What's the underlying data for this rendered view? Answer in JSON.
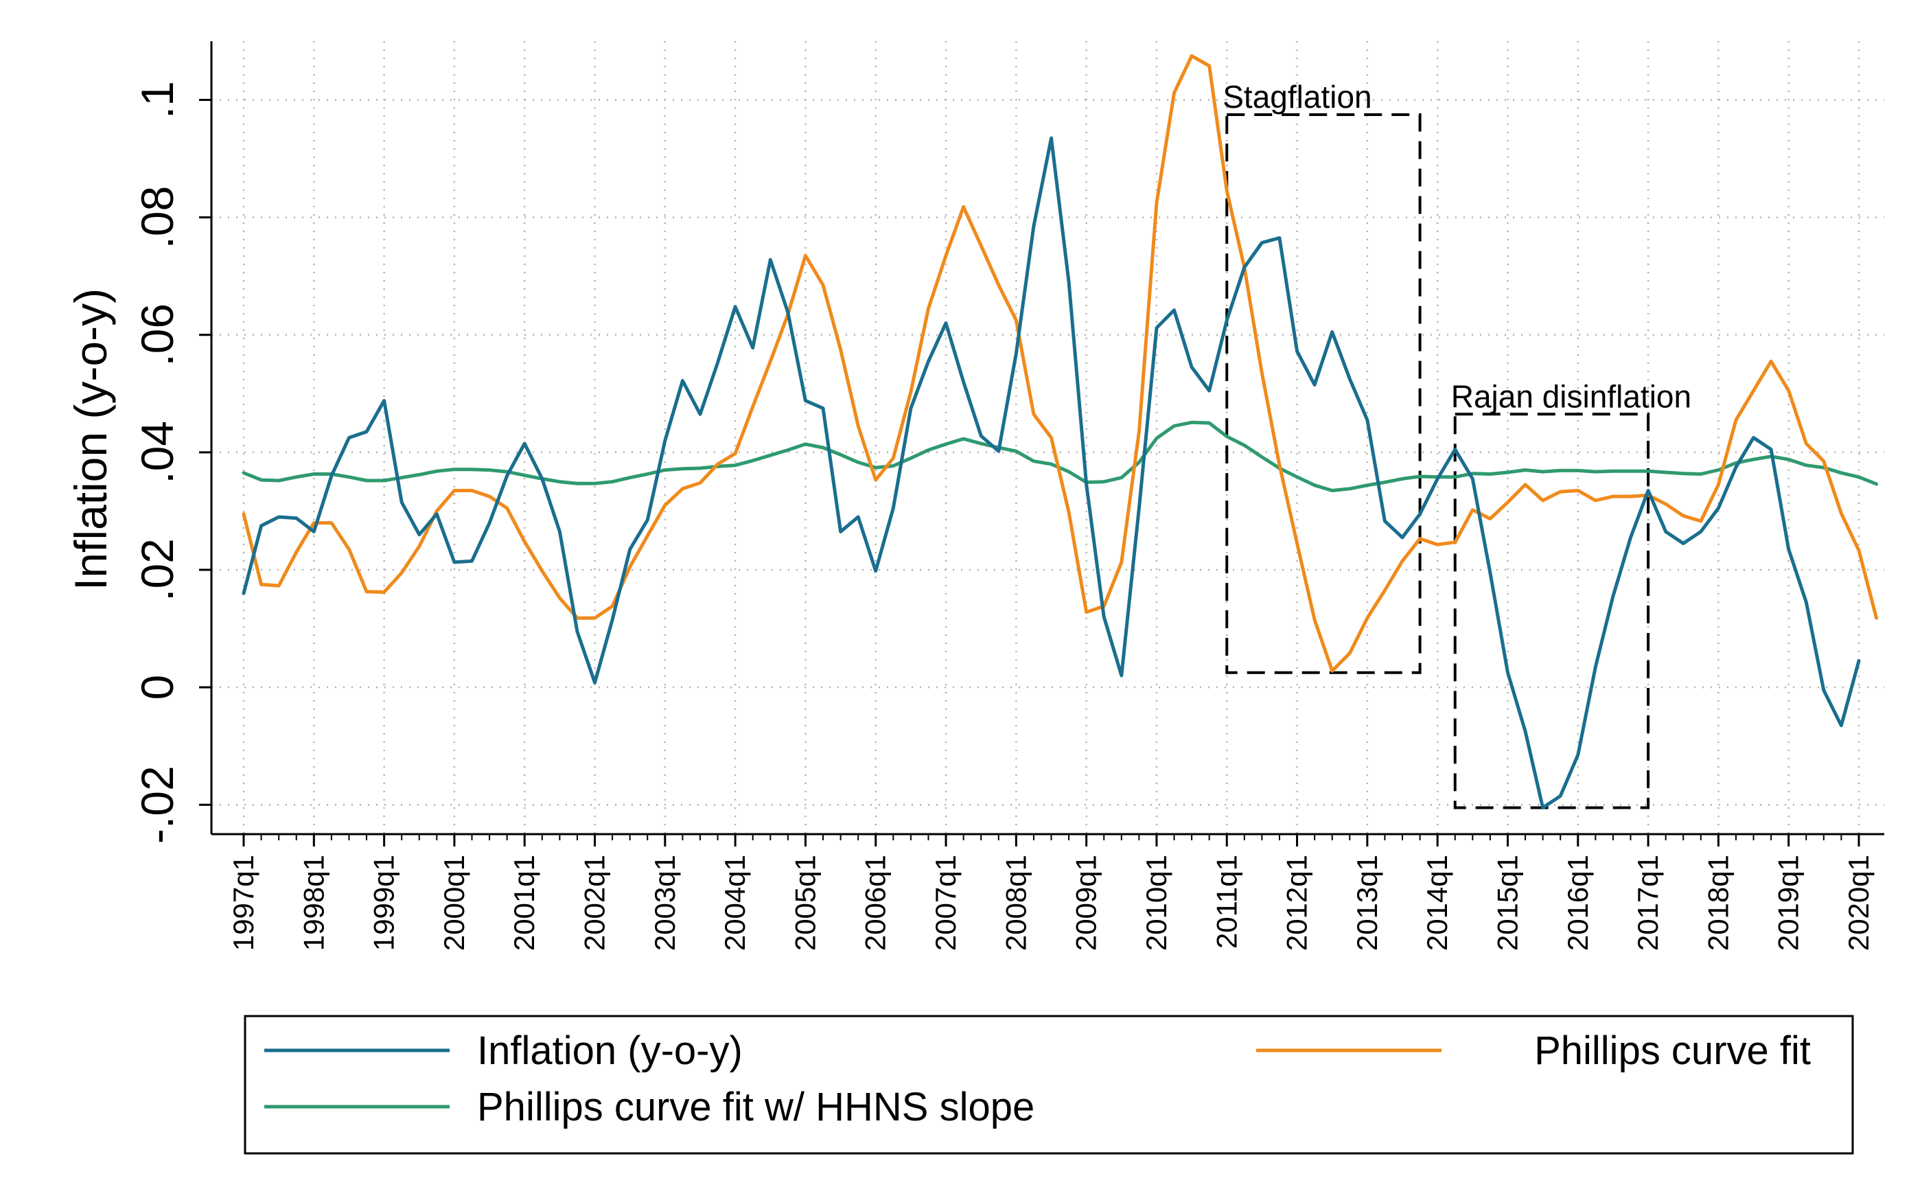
{
  "chart_data": {
    "type": "line",
    "ylabel": "Inflation (y-o-y)",
    "xlabel": "",
    "ylim": [
      -0.025,
      0.11
    ],
    "yticks": [
      -0.02,
      0,
      0.02,
      0.04,
      0.06,
      0.08,
      0.1
    ],
    "ytick_labels": [
      "-.02",
      "0",
      ".02",
      ".04",
      ".06",
      ".08",
      ".1"
    ],
    "x_tick_labels": [
      "1997q1",
      "1998q1",
      "1999q1",
      "2000q1",
      "2001q1",
      "2002q1",
      "2003q1",
      "2004q1",
      "2005q1",
      "2006q1",
      "2007q1",
      "2008q1",
      "2009q1",
      "2010q1",
      "2011q1",
      "2012q1",
      "2013q1",
      "2014q1",
      "2015q1",
      "2016q1",
      "2017q1",
      "2018q1",
      "2019q1",
      "2020q1"
    ],
    "grid": true,
    "legend_position": "bottom",
    "annotations": [
      {
        "label": "Stagflation",
        "x_start": "2011q1",
        "x_end": "2013q4",
        "y_bottom": 0.0025,
        "y_top": 0.0975
      },
      {
        "label": "Rajan disinflation",
        "x_start": "2014q2",
        "x_end": "2017q1",
        "y_bottom": -0.0205,
        "y_top": 0.0465
      }
    ],
    "series": [
      {
        "name": "Inflation (y-o-y)",
        "color": "#1a6e8e",
        "values": [
          0.016,
          0.0275,
          0.029,
          0.0288,
          0.0265,
          0.036,
          0.0425,
          0.0435,
          0.0488,
          0.0315,
          0.026,
          0.0295,
          0.0213,
          0.0215,
          0.028,
          0.036,
          0.0415,
          0.0355,
          0.0265,
          0.0095,
          0.0008,
          0.0115,
          0.0235,
          0.0285,
          0.042,
          0.0522,
          0.0465,
          0.0553,
          0.0648,
          0.0578,
          0.0728,
          0.0638,
          0.0488,
          0.0475,
          0.0265,
          0.029,
          0.0198,
          0.0305,
          0.0475,
          0.0555,
          0.062,
          0.052,
          0.0428,
          0.0402,
          0.0568,
          0.0785,
          0.0935,
          0.069,
          0.0345,
          0.012,
          0.002,
          0.0305,
          0.0612,
          0.0642,
          0.0545,
          0.0505,
          0.0625,
          0.0715,
          0.0757,
          0.0765,
          0.0572,
          0.0515,
          0.0605,
          0.0525,
          0.0455,
          0.0283,
          0.0255,
          0.0295,
          0.0355,
          0.0405,
          0.0355,
          0.0195,
          0.0025,
          -0.0075,
          -0.0205,
          -0.0185,
          -0.0115,
          0.0035,
          0.0155,
          0.0255,
          0.0335,
          0.0265,
          0.0245,
          0.0265,
          0.0305,
          0.0375,
          0.0425,
          0.0405,
          0.0235,
          0.0145,
          -0.0005,
          -0.0065,
          0.0045
        ]
      },
      {
        "name": "Phillips curve fit",
        "color": "#f08a1c",
        "values": [
          0.0295,
          0.0175,
          0.0173,
          0.023,
          0.028,
          0.028,
          0.0235,
          0.0163,
          0.0162,
          0.0195,
          0.024,
          0.03,
          0.0335,
          0.0335,
          0.0325,
          0.0305,
          0.0248,
          0.0198,
          0.0152,
          0.0118,
          0.0118,
          0.0138,
          0.0205,
          0.0258,
          0.031,
          0.0338,
          0.0348,
          0.038,
          0.0398,
          0.0478,
          0.0555,
          0.0635,
          0.0735,
          0.0685,
          0.0575,
          0.0445,
          0.0353,
          0.039,
          0.0503,
          0.0645,
          0.0735,
          0.0818,
          0.0752,
          0.0685,
          0.0625,
          0.0465,
          0.0425,
          0.0298,
          0.0128,
          0.0138,
          0.0213,
          0.0435,
          0.0825,
          0.1012,
          0.1075,
          0.1058,
          0.0845,
          0.0715,
          0.0535,
          0.0378,
          0.0245,
          0.0115,
          0.0028,
          0.0058,
          0.0118,
          0.0165,
          0.0215,
          0.0253,
          0.0243,
          0.0247,
          0.0302,
          0.0287,
          0.0315,
          0.0345,
          0.0318,
          0.0333,
          0.0335,
          0.0318,
          0.0325,
          0.0325,
          0.0327,
          0.0312,
          0.0292,
          0.0283,
          0.0345,
          0.0455,
          0.0505,
          0.0555,
          0.0505,
          0.0415,
          0.0385,
          0.0296,
          0.0233,
          0.0118
        ]
      },
      {
        "name": "Phillips curve fit w/ HHNS slope",
        "color": "#2f9a6f",
        "values": [
          0.0365,
          0.0353,
          0.0352,
          0.0358,
          0.0363,
          0.0363,
          0.0358,
          0.0352,
          0.0352,
          0.0357,
          0.0362,
          0.0368,
          0.0371,
          0.0371,
          0.037,
          0.0367,
          0.0361,
          0.0355,
          0.035,
          0.0347,
          0.0347,
          0.035,
          0.0357,
          0.0363,
          0.037,
          0.0372,
          0.0373,
          0.0376,
          0.0378,
          0.0386,
          0.0395,
          0.0404,
          0.0414,
          0.0408,
          0.0396,
          0.0383,
          0.0374,
          0.0377,
          0.039,
          0.0404,
          0.0414,
          0.0423,
          0.0415,
          0.0408,
          0.0402,
          0.0385,
          0.038,
          0.0367,
          0.0349,
          0.035,
          0.0357,
          0.0383,
          0.0424,
          0.0445,
          0.0451,
          0.045,
          0.0427,
          0.0412,
          0.0392,
          0.0373,
          0.0358,
          0.0344,
          0.0335,
          0.0338,
          0.0344,
          0.0349,
          0.0355,
          0.0359,
          0.0358,
          0.0358,
          0.0364,
          0.0363,
          0.0366,
          0.037,
          0.0367,
          0.0369,
          0.0369,
          0.0367,
          0.0368,
          0.0368,
          0.0368,
          0.0366,
          0.0364,
          0.0363,
          0.037,
          0.0382,
          0.0388,
          0.0393,
          0.0388,
          0.0378,
          0.0374,
          0.0365,
          0.0358,
          0.0346
        ]
      }
    ]
  }
}
